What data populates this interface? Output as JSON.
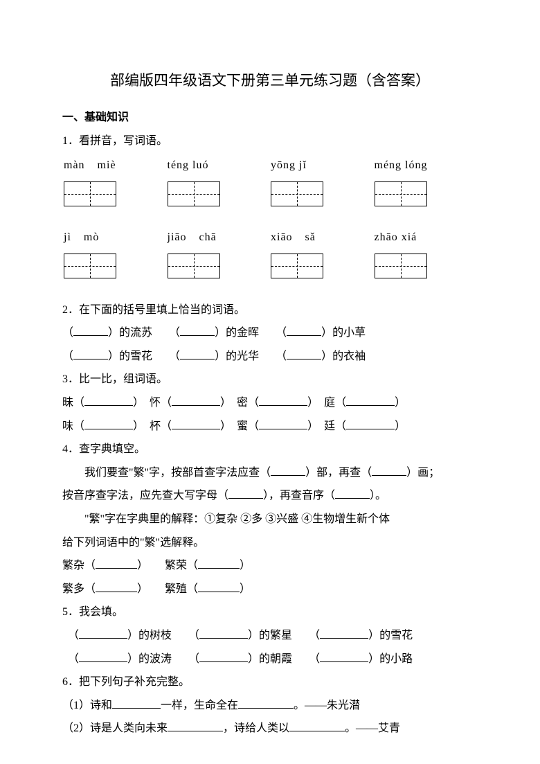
{
  "title": "部编版四年级语文下册第三单元练习题（含答案）",
  "section1": "一、基础知识",
  "q1": "1．看拼音，写词语。",
  "pinyin": {
    "row1": [
      "màn",
      "miè",
      "téng luó",
      "yōng jǐ",
      "méng lóng"
    ],
    "row2": [
      "jì",
      "mò",
      "jiāo",
      "chā",
      "xiāo",
      "sǎ",
      "zhāo xiá"
    ]
  },
  "q2": "2．在下面的括号里填上恰当的词语。",
  "q2a": "的流苏",
  "q2b": "的金晖",
  "q2c": "的小草",
  "q2d": "的雪花",
  "q2e": "的光华",
  "q2f": "的衣袖",
  "q3": "3．比一比，组词语。",
  "q3row1": [
    "昧（",
    "怀（",
    "密（",
    "庭（"
  ],
  "q3row2": [
    "味（",
    "杯（",
    "蜜（",
    "廷（"
  ],
  "q4": "4．查字典填空。",
  "q4line1a": "我们要查\"繁\"字，按部首查字法应查（",
  "q4line1b": "）部，再查（",
  "q4line1c": "）画；",
  "q4line2a": "按音序查字法，应先查大写字母（",
  "q4line2b": "），再查音序（",
  "q4line2c": "）。",
  "q4line3": "\"繁\"字在字典里的解释：①复杂  ②多  ③兴盛  ④生物增生新个体",
  "q4line4": "给下列词语中的\"繁\"选解释。",
  "q4w1": "繁杂（",
  "q4w2": "繁荣（",
  "q4w3": "繁多（",
  "q4w4": "繁殖（",
  "q5": "5．我会填。",
  "q5a": "）的树枝",
  "q5b": "）的繁星",
  "q5c": "）的雪花",
  "q5d": "）的波涛",
  "q5e": "）的朝霞",
  "q5f": "）的小路",
  "q6": "6．把下列句子补充完整。",
  "q6line1a": "（1）诗和",
  "q6line1b": "一样，生命全在",
  "q6line1c": "。——朱光潜",
  "q6line2a": "（2）诗是人类向未来",
  "q6line2b": "，诗给人类以",
  "q6line2c": "。——艾青",
  "colors": {
    "text": "#000000",
    "background": "#ffffff"
  }
}
